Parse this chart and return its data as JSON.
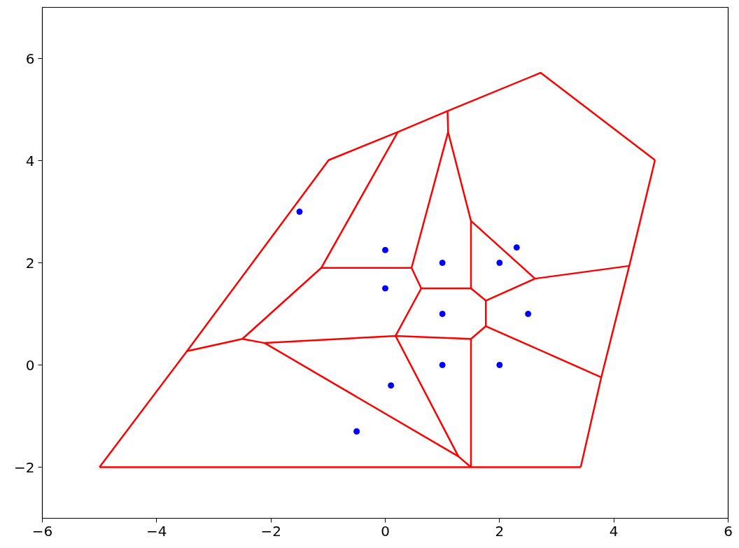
{
  "chart_data": {
    "type": "scatter",
    "xlim": [
      -6,
      6
    ],
    "ylim": [
      -3,
      7
    ],
    "xticks": [
      {
        "value": -6,
        "label": "−6"
      },
      {
        "value": -4,
        "label": "−4"
      },
      {
        "value": -2,
        "label": "−2"
      },
      0,
      2,
      4,
      6
    ],
    "yticks": [
      {
        "value": -2,
        "label": "−2"
      },
      0,
      2,
      4,
      6
    ],
    "grid": false,
    "series": [
      {
        "type": "line",
        "color": "#ff0000",
        "marker": "none",
        "line_style": "solid",
        "x": [
          -5,
          -3.47,
          -0.99,
          0.22,
          1.09,
          2.72,
          4.72
        ],
        "values": [
          -2,
          0.27,
          4.01,
          4.56,
          4.97,
          5.72,
          4.01
        ]
      },
      {
        "type": "line",
        "color": "#ff0000",
        "marker": "none",
        "line_style": "solid",
        "x": [
          3.42,
          3.78,
          4.27,
          4.72
        ],
        "values": [
          -2,
          -0.24,
          1.94,
          4.01
        ]
      },
      {
        "type": "line",
        "color": "#ff0000",
        "marker": "none",
        "line_style": "solid",
        "x": [
          -5,
          1.5,
          3.42
        ],
        "values": [
          -2,
          -2,
          -2
        ]
      },
      {
        "type": "line",
        "color": "#ff0000",
        "marker": "none",
        "line_style": "solid",
        "x": [
          -2.11,
          1.28,
          1.5
        ],
        "values": [
          0.43,
          -1.79,
          -2
        ]
      },
      {
        "type": "line",
        "color": "#ff0000",
        "marker": "none",
        "line_style": "solid",
        "x": [
          0.18,
          1.28
        ],
        "values": [
          0.57,
          -1.79
        ]
      },
      {
        "type": "line",
        "color": "#ff0000",
        "marker": "none",
        "line_style": "solid",
        "x": [
          -2.5,
          -2.11,
          0.18,
          1.5,
          1.76,
          3.78
        ],
        "values": [
          0.51,
          0.43,
          0.57,
          0.51,
          0.76,
          -0.24
        ]
      },
      {
        "type": "line",
        "color": "#ff0000",
        "marker": "none",
        "line_style": "solid",
        "x": [
          -3.47,
          -2.5,
          -1.12,
          0.46,
          0.63,
          1.5,
          1.76,
          2.62,
          4.27
        ],
        "values": [
          0.27,
          0.51,
          1.9,
          1.9,
          1.5,
          1.5,
          1.26,
          1.69,
          1.94
        ]
      },
      {
        "type": "line",
        "color": "#ff0000",
        "marker": "none",
        "line_style": "solid",
        "x": [
          -1.12,
          0.22
        ],
        "values": [
          1.9,
          4.56
        ]
      },
      {
        "type": "line",
        "color": "#ff0000",
        "marker": "none",
        "line_style": "solid",
        "x": [
          1.09,
          1.1,
          1.5,
          2.62
        ],
        "values": [
          4.97,
          4.56,
          2.82,
          1.69
        ]
      },
      {
        "type": "line",
        "color": "#ff0000",
        "marker": "none",
        "line_style": "solid",
        "x": [
          0.46,
          1.1
        ],
        "values": [
          1.9,
          4.56
        ]
      },
      {
        "type": "line",
        "color": "#ff0000",
        "marker": "none",
        "line_style": "solid",
        "x": [
          0.18,
          0.63
        ],
        "values": [
          0.57,
          1.5
        ]
      },
      {
        "type": "line",
        "color": "#ff0000",
        "marker": "none",
        "line_style": "solid",
        "x": [
          1.5,
          1.5
        ],
        "values": [
          1.5,
          2.82
        ]
      },
      {
        "type": "line",
        "color": "#ff0000",
        "marker": "none",
        "line_style": "solid",
        "x": [
          1.76,
          1.76
        ],
        "values": [
          0.76,
          1.26
        ]
      },
      {
        "type": "line",
        "color": "#ff0000",
        "marker": "none",
        "line_style": "solid",
        "x": [
          1.5,
          1.5
        ],
        "values": [
          -2,
          0.51
        ]
      },
      {
        "color": "#0000ff",
        "marker": "circle",
        "x": [
          -1.5,
          0,
          0,
          1,
          1,
          2,
          2.3,
          2.5,
          1,
          2,
          0.1,
          -0.5
        ],
        "values": [
          3,
          2.25,
          1.5,
          2,
          1,
          2,
          2.3,
          1,
          0,
          0,
          -0.4,
          -1.3
        ]
      }
    ]
  }
}
